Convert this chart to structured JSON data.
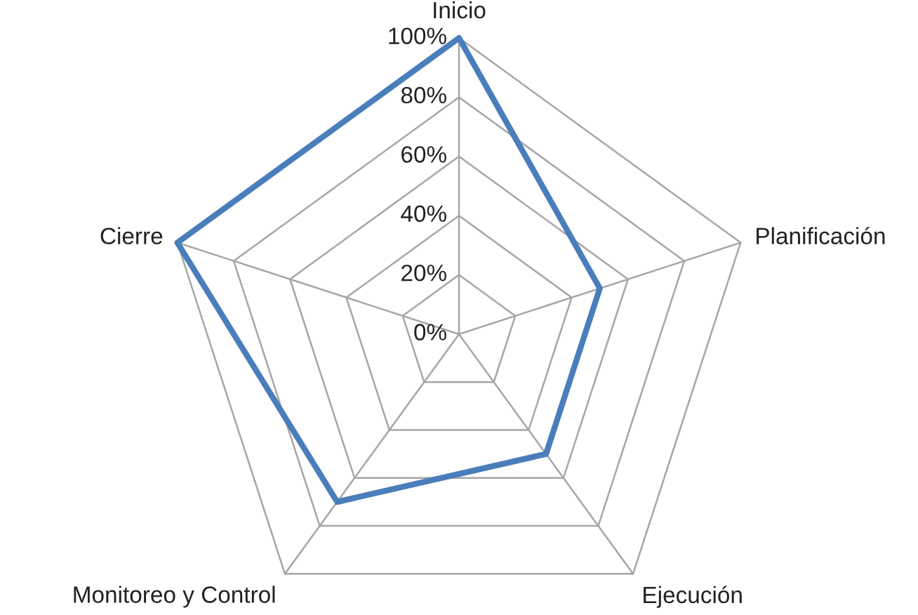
{
  "chart_data": {
    "type": "radar",
    "categories": [
      "Inicio",
      "Planificación",
      "Ejecución",
      "Monitoreo y Control",
      "Cierre"
    ],
    "series": [
      {
        "color": "#4a7ebb",
        "values": [
          100,
          50,
          50,
          70,
          100
        ]
      }
    ],
    "ylim": [
      0,
      100
    ],
    "yticks": [
      {
        "value": 0,
        "label": "0%"
      },
      {
        "value": 20,
        "label": "20%"
      },
      {
        "value": 40,
        "label": "40%"
      },
      {
        "value": 60,
        "label": "60%"
      },
      {
        "value": 80,
        "label": "80%"
      },
      {
        "value": 100,
        "label": "100%"
      }
    ],
    "grid": true
  }
}
